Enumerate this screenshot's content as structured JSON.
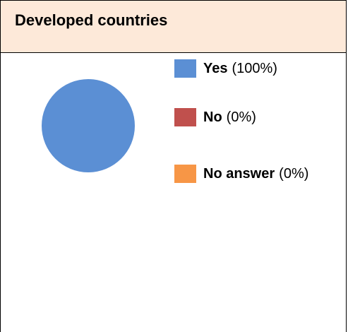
{
  "chart_data": {
    "type": "pie",
    "title": "Developed countries",
    "slices": [
      {
        "label": "Yes",
        "value": 100,
        "display": "(100%)",
        "color": "#5b8fd4"
      },
      {
        "label": "No",
        "value": 0,
        "display": "(0%)",
        "color": "#c0504d"
      },
      {
        "label": "No answer",
        "value": 0,
        "display": "(0%)",
        "color": "#f79646"
      }
    ]
  },
  "colors": {
    "header_bg": "#fde9d9",
    "border": "#000000"
  }
}
